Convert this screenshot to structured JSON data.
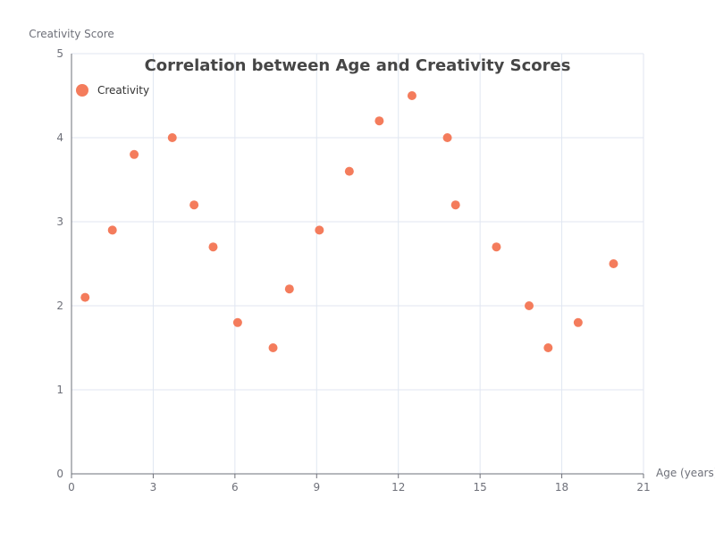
{
  "chart_data": {
    "type": "scatter",
    "title": "Correlation between Age and Creativity Scores",
    "xlabel": "Age (years)",
    "ylabel": "Creativity Score",
    "xlim": [
      0,
      21
    ],
    "ylim": [
      0,
      5
    ],
    "x_ticks": [
      0,
      3,
      6,
      9,
      12,
      15,
      18,
      21
    ],
    "y_ticks": [
      0,
      1,
      2,
      3,
      4,
      5
    ],
    "grid": true,
    "legend_position": "top-left",
    "series": [
      {
        "name": "Creativity",
        "color": "#f47c5c",
        "x": [
          0.5,
          1.5,
          2.3,
          3.7,
          4.5,
          5.2,
          6.1,
          7.4,
          8.0,
          9.1,
          10.2,
          11.3,
          12.5,
          13.8,
          14.1,
          15.6,
          16.8,
          17.5,
          18.6,
          19.9
        ],
        "y": [
          2.1,
          2.9,
          3.8,
          4.0,
          3.2,
          2.7,
          1.8,
          1.5,
          2.2,
          2.9,
          3.6,
          4.2,
          4.5,
          4.0,
          3.2,
          2.7,
          2.0,
          1.5,
          1.8,
          2.5
        ]
      }
    ]
  }
}
